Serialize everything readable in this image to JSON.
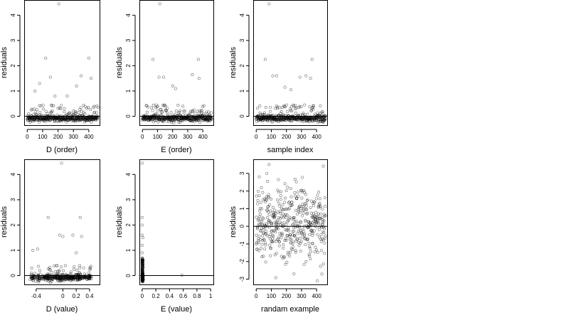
{
  "figure": {
    "background": "#ffffff",
    "point_color": "#000000"
  },
  "chart_data": [
    {
      "type": "scatter",
      "id": "p1",
      "xlabel": "D (order)",
      "ylabel": "residuals",
      "xticks": [
        0,
        100,
        200,
        300,
        400
      ],
      "yticks": [
        0,
        1,
        2,
        3,
        4
      ],
      "xlim": [
        -20,
        470
      ],
      "ylim": [
        -0.35,
        4.6
      ],
      "hline": 0,
      "series": [
        {
          "gen": "order",
          "seed": 11,
          "n": 460,
          "outliers": [
            [
              205,
              4.45
            ],
            [
              120,
              2.3
            ],
            [
              400,
              2.3
            ],
            [
              50,
              1.0
            ],
            [
              80,
              1.3
            ],
            [
              150,
              1.55
            ],
            [
              350,
              1.6
            ],
            [
              415,
              1.5
            ],
            [
              320,
              1.2
            ],
            [
              260,
              0.8
            ],
            [
              180,
              0.8
            ]
          ]
        }
      ]
    },
    {
      "type": "scatter",
      "id": "p2",
      "xlabel": "E (order)",
      "ylabel": "residuals",
      "xticks": [
        0,
        100,
        200,
        300,
        400
      ],
      "yticks": [
        0,
        1,
        2,
        3,
        4
      ],
      "xlim": [
        -20,
        470
      ],
      "ylim": [
        -0.35,
        4.6
      ],
      "hline": 0,
      "series": [
        {
          "gen": "order",
          "seed": 23,
          "n": 460,
          "outliers": [
            [
              115,
              4.45
            ],
            [
              70,
              2.25
            ],
            [
              370,
              2.25
            ],
            [
              110,
              1.55
            ],
            [
              140,
              1.55
            ],
            [
              330,
              1.65
            ],
            [
              375,
              1.5
            ],
            [
              200,
              1.2
            ],
            [
              220,
              1.1
            ]
          ]
        }
      ]
    },
    {
      "type": "scatter",
      "id": "p3",
      "xlabel": "sample index",
      "ylabel": "residuals",
      "xticks": [
        0,
        100,
        200,
        300,
        400
      ],
      "yticks": [
        0,
        1,
        2,
        3,
        4
      ],
      "xlim": [
        -20,
        470
      ],
      "ylim": [
        -0.35,
        4.6
      ],
      "hline": 0,
      "series": [
        {
          "gen": "order",
          "seed": 37,
          "n": 460,
          "outliers": [
            [
              85,
              4.45
            ],
            [
              60,
              2.25
            ],
            [
              370,
              2.25
            ],
            [
              110,
              1.6
            ],
            [
              135,
              1.6
            ],
            [
              290,
              1.55
            ],
            [
              330,
              1.6
            ],
            [
              360,
              1.5
            ],
            [
              190,
              1.15
            ],
            [
              230,
              1.05
            ]
          ]
        }
      ]
    },
    {
      "type": "scatter",
      "id": "p4",
      "xlabel": "D (value)",
      "ylabel": "residuals",
      "xticks": [
        -0.4,
        0.0,
        0.2,
        0.4
      ],
      "yticks": [
        0,
        1,
        2,
        3,
        4
      ],
      "xlim": [
        -0.58,
        0.55
      ],
      "ylim": [
        -0.35,
        4.6
      ],
      "hline": 0,
      "series": [
        {
          "gen": "dvalue",
          "seed": 41,
          "n": 420,
          "outliers": [
            [
              -0.02,
              4.45
            ],
            [
              -0.22,
              2.3
            ],
            [
              0.26,
              2.3
            ],
            [
              -0.05,
              1.6
            ],
            [
              0.0,
              1.55
            ],
            [
              0.15,
              1.6
            ],
            [
              0.28,
              1.55
            ],
            [
              -0.45,
              1.0
            ],
            [
              -0.38,
              1.05
            ],
            [
              0.2,
              0.9
            ]
          ]
        }
      ]
    },
    {
      "type": "scatter",
      "id": "p5",
      "xlabel": "E (value)",
      "ylabel": "residuals",
      "xticks": [
        0.0,
        0.2,
        0.4,
        0.6,
        0.8,
        1.0
      ],
      "yticks": [
        0,
        1,
        2,
        3,
        4
      ],
      "xlim": [
        -0.04,
        1.04
      ],
      "ylim": [
        -0.35,
        4.6
      ],
      "hline": 0,
      "series": [
        {
          "gen": "evalue",
          "seed": 53,
          "n": 300,
          "outliers": [
            [
              0.0,
              4.45
            ],
            [
              0.0,
              2.3
            ],
            [
              0.0,
              2.0
            ],
            [
              0.0,
              1.6
            ],
            [
              0.01,
              1.5
            ],
            [
              0.0,
              1.2
            ],
            [
              0.0,
              0.9
            ],
            [
              0.0,
              0.6
            ],
            [
              0.58,
              0.02
            ]
          ]
        }
      ]
    },
    {
      "type": "scatter",
      "id": "p6",
      "xlabel": "randam example",
      "ylabel": "residuals",
      "xticks": [
        0,
        100,
        200,
        300,
        400
      ],
      "yticks": [
        -3,
        -2,
        -1,
        0,
        1,
        2,
        3
      ],
      "xlim": [
        -20,
        470
      ],
      "ylim": [
        -3.3,
        3.8
      ],
      "hline": 0,
      "series": [
        {
          "gen": "normal",
          "seed": 67,
          "n": 460,
          "outliers": [
            [
              85,
              3.5
            ],
            [
              70,
              3.0
            ],
            [
              405,
              -3.1
            ],
            [
              250,
              -2.7
            ],
            [
              20,
              2.8
            ]
          ]
        }
      ]
    }
  ]
}
